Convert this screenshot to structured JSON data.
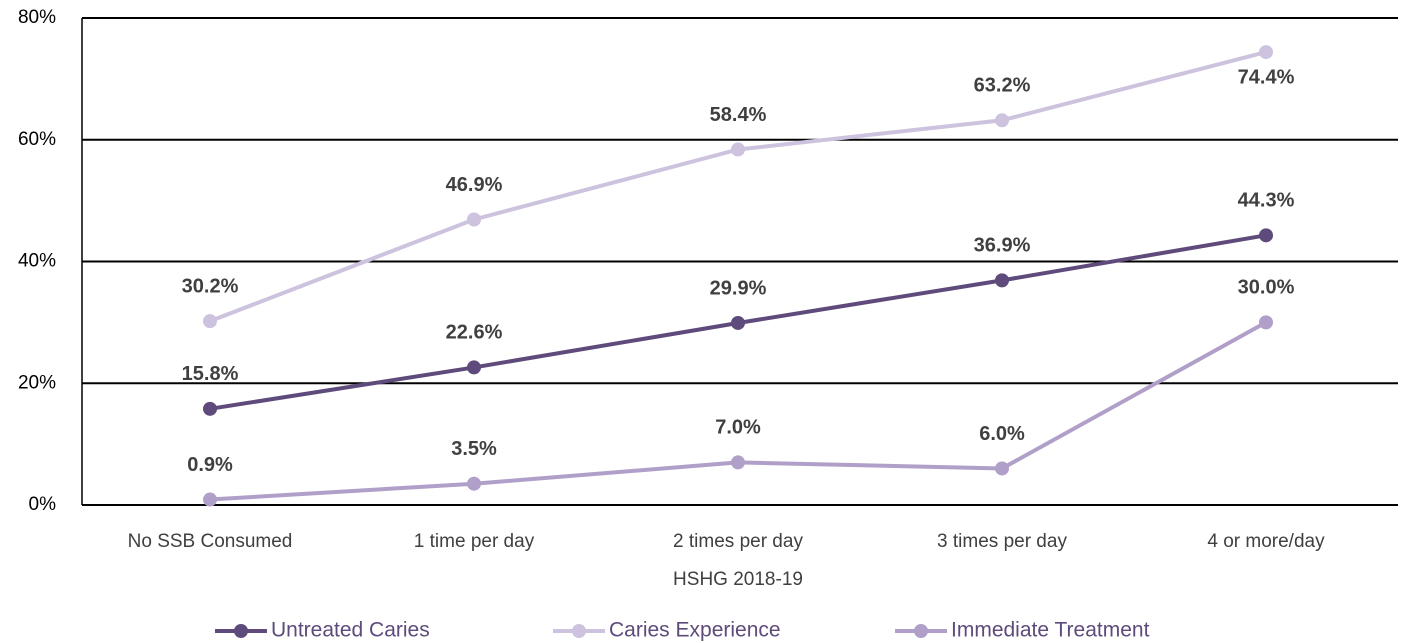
{
  "chart_data": {
    "type": "line",
    "categories": [
      "No SSB Consumed",
      "1 time per day",
      "2 times per day",
      "3 times per day",
      "4 or more/day"
    ],
    "xlabel": "HSHG 2018-19",
    "series": [
      {
        "name": "Untreated Caries",
        "color": "#5e4b7b",
        "values": [
          15.8,
          22.6,
          29.9,
          36.9,
          44.3
        ],
        "value_labels": [
          "15.8%",
          "22.6%",
          "29.9%",
          "36.9%",
          "44.3%"
        ]
      },
      {
        "name": "Caries Experience",
        "color": "#cdc3de",
        "values": [
          30.2,
          46.9,
          58.4,
          63.2,
          74.4
        ],
        "value_labels": [
          "30.2%",
          "46.9%",
          "58.4%",
          "63.2%",
          "74.4%"
        ]
      },
      {
        "name": "Immediate Treatment",
        "color": "#b09fc8",
        "values": [
          0.9,
          3.5,
          7.0,
          6.0,
          30.0
        ],
        "value_labels": [
          "0.9%",
          "3.5%",
          "7.0%",
          "6.0%",
          "30.0%"
        ]
      }
    ],
    "ylim": [
      0,
      80
    ],
    "yticks": [
      {
        "value": 0,
        "label": "0%"
      },
      {
        "value": 20,
        "label": "20%"
      },
      {
        "value": 40,
        "label": "40%"
      },
      {
        "value": 60,
        "label": "60%"
      },
      {
        "value": 80,
        "label": "80%"
      }
    ],
    "grid": true,
    "legend": "bottom"
  }
}
